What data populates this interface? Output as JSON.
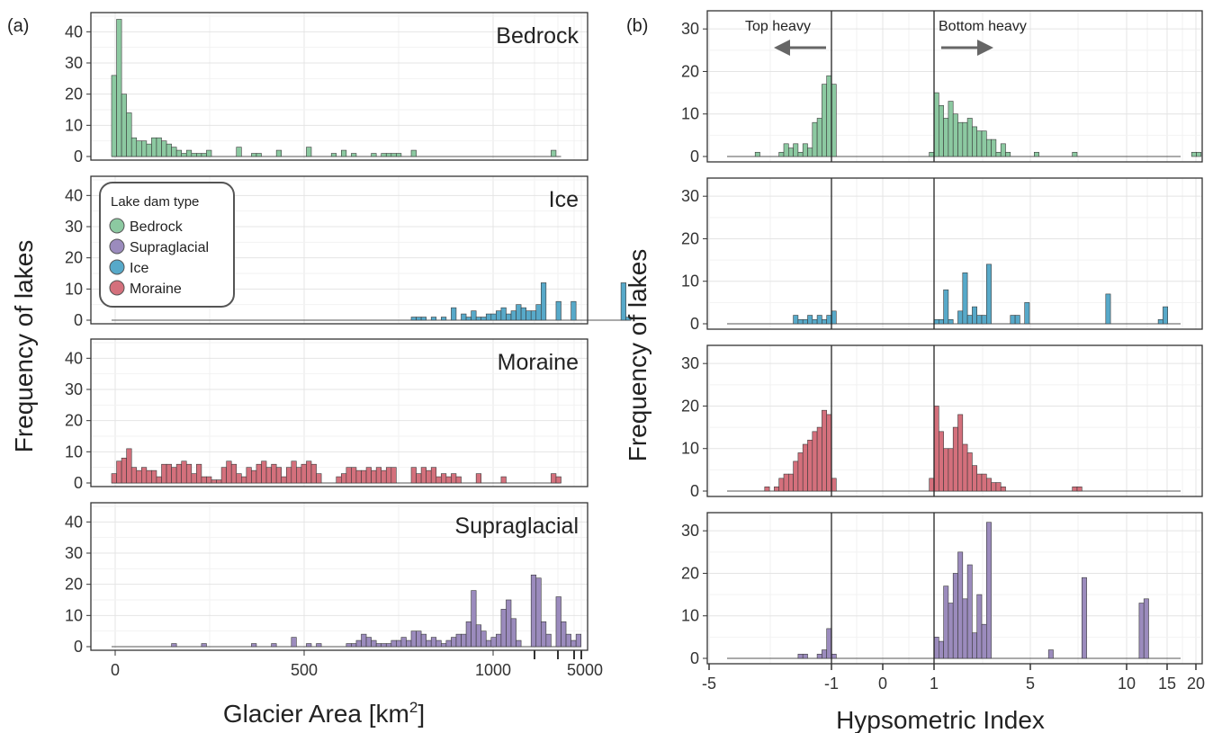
{
  "figure": {
    "panel_a_label": "(a)",
    "panel_b_label": "(b)",
    "left_xlabel_main": "Glacier Area [km",
    "left_xlabel_sup": "2",
    "left_xlabel_end": "]",
    "left_ylabel": "Frequency of lakes",
    "right_xlabel": "Hypsometric Index",
    "right_ylabel": "Frequency of lakes",
    "annotation_top_heavy": "Top heavy",
    "annotation_bottom_heavy": "Bottom heavy"
  },
  "legend": {
    "title": "Lake dam type",
    "items": [
      {
        "label": "Bedrock",
        "color": "#8cc9a1"
      },
      {
        "label": "Supraglacial",
        "color": "#9b8bbd"
      },
      {
        "label": "Ice",
        "color": "#57a9c9"
      },
      {
        "label": "Moraine",
        "color": "#d4707c"
      }
    ]
  },
  "chart_data": [
    {
      "type": "bar",
      "panel": "a",
      "xlabel": "Glacier Area [km2]",
      "ylabel": "Frequency of lakes",
      "ylim": [
        0,
        45
      ],
      "x_ticks": [
        "0",
        "500",
        "1000",
        "5000"
      ],
      "y_ticks": [
        "0",
        "10",
        "20",
        "30",
        "40"
      ],
      "x_scale": "linear 0–1000, compressed above 1000",
      "grid": true,
      "legend_position": "inside Ice panel, top-left",
      "facets": [
        {
          "name": "Bedrock",
          "color": "#8cc9a1",
          "values": [
            26,
            44,
            20,
            14,
            6,
            5,
            5,
            4,
            6,
            6,
            5,
            4,
            3,
            2,
            1,
            2,
            1,
            1,
            1,
            2,
            0,
            0,
            0,
            0,
            0,
            3,
            0,
            0,
            1,
            1,
            0,
            0,
            0,
            2,
            0,
            0,
            0,
            0,
            0,
            3,
            0,
            0,
            0,
            0,
            1,
            0,
            2,
            0,
            1,
            0,
            0,
            0,
            1,
            0,
            1,
            1,
            1,
            1,
            0,
            0,
            2,
            0,
            0,
            0,
            0,
            0,
            0,
            0,
            0,
            0,
            0,
            0,
            0,
            0,
            0,
            0,
            0,
            0,
            0,
            0,
            0,
            0,
            0,
            0,
            0,
            0,
            0,
            0,
            2,
            0
          ]
        },
        {
          "name": "Ice",
          "color": "#57a9c9",
          "values": [
            0,
            0,
            0,
            0,
            0,
            0,
            0,
            0,
            0,
            0,
            0,
            0,
            0,
            0,
            0,
            0,
            0,
            0,
            0,
            0,
            0,
            0,
            0,
            0,
            0,
            0,
            0,
            0,
            0,
            0,
            0,
            0,
            0,
            0,
            0,
            0,
            0,
            0,
            0,
            0,
            0,
            0,
            0,
            0,
            0,
            0,
            0,
            0,
            0,
            0,
            0,
            0,
            0,
            0,
            0,
            0,
            0,
            0,
            0,
            0,
            1,
            1,
            1,
            0,
            1,
            0,
            1,
            0,
            4,
            0,
            2,
            1,
            3,
            1,
            1,
            2,
            2,
            3,
            4,
            2,
            3,
            5,
            4,
            3,
            3,
            5,
            12,
            0,
            0,
            6,
            0,
            0,
            6,
            0,
            0,
            0,
            0,
            0,
            0,
            0,
            0,
            0,
            12,
            1
          ]
        },
        {
          "name": "Moraine",
          "color": "#d4707c",
          "values": [
            3,
            7,
            8,
            11,
            5,
            4,
            5,
            4,
            4,
            2,
            6,
            6,
            5,
            6,
            7,
            6,
            3,
            6,
            2,
            2,
            1,
            1,
            5,
            7,
            6,
            3,
            2,
            5,
            4,
            6,
            7,
            5,
            6,
            5,
            2,
            5,
            7,
            5,
            6,
            7,
            6,
            3,
            0,
            0,
            0,
            2,
            3,
            5,
            5,
            4,
            4,
            5,
            4,
            5,
            4,
            5,
            5,
            0,
            0,
            0,
            5,
            3,
            5,
            4,
            5,
            2,
            3,
            2,
            3,
            2,
            0,
            0,
            0,
            3,
            0,
            0,
            0,
            0,
            2,
            0,
            0,
            0,
            0,
            0,
            0,
            0,
            0,
            0,
            3,
            2
          ]
        },
        {
          "name": "Supraglacial",
          "color": "#9b8bbd",
          "values": [
            0,
            0,
            0,
            0,
            0,
            0,
            0,
            0,
            0,
            0,
            0,
            0,
            1,
            0,
            0,
            0,
            0,
            0,
            1,
            0,
            0,
            0,
            0,
            0,
            0,
            0,
            0,
            0,
            1,
            0,
            0,
            0,
            1,
            0,
            0,
            0,
            3,
            0,
            0,
            1,
            0,
            1,
            0,
            0,
            0,
            0,
            0,
            1,
            1,
            2,
            4,
            3,
            2,
            1,
            1,
            1,
            2,
            2,
            3,
            2,
            5,
            5,
            4,
            2,
            3,
            2,
            1,
            2,
            3,
            4,
            4,
            8,
            18,
            7,
            5,
            2,
            3,
            4,
            12,
            15,
            9,
            2,
            0,
            0,
            23,
            22,
            8,
            4,
            0,
            16,
            8,
            4,
            2,
            4
          ]
        }
      ]
    },
    {
      "type": "bar",
      "panel": "b",
      "xlabel": "Hypsometric Index",
      "ylabel": "Frequency of lakes",
      "ylim": [
        0,
        33
      ],
      "x_ticks": [
        "-5",
        "-1",
        "0",
        "1",
        "5",
        "10",
        "15",
        "20"
      ],
      "y_ticks": [
        "0",
        "10",
        "20",
        "30"
      ],
      "x_scale": "piecewise: -5 to -1, -1 to 1, 1 to 5, 5 to 20",
      "grid": true,
      "vertical_reference_lines_at": [
        -1,
        1
      ],
      "facets": [
        {
          "name": "Bedrock",
          "color": "#8cc9a1",
          "neg_values": [
            1,
            0,
            0,
            0,
            0,
            1,
            3,
            2,
            3,
            1,
            3,
            2,
            8,
            9,
            17,
            19,
            17
          ],
          "pos_values": [
            1,
            15,
            12,
            9,
            13,
            10,
            8,
            8,
            9,
            7,
            6,
            6,
            4,
            4,
            1,
            3,
            1,
            0,
            0,
            0,
            0,
            0,
            1,
            0,
            0,
            0,
            0,
            0,
            0,
            0,
            1,
            0,
            0,
            0,
            0,
            0,
            0,
            0,
            0,
            0,
            0,
            0,
            0,
            0,
            0,
            0,
            0,
            0,
            0,
            0,
            0,
            0,
            0,
            0,
            0,
            1,
            1,
            0,
            0,
            0,
            0,
            0,
            0,
            0,
            0,
            0,
            0,
            0,
            0,
            0,
            0,
            0,
            0,
            0,
            0
          ]
        },
        {
          "name": "Ice",
          "color": "#57a9c9",
          "neg_values": [
            0,
            0,
            0,
            0,
            0,
            0,
            2,
            1,
            1,
            2,
            1,
            2,
            1,
            2,
            3
          ],
          "pos_values": [
            0,
            1,
            1,
            8,
            1,
            0,
            3,
            12,
            2,
            4,
            2,
            2,
            14,
            0,
            0,
            0,
            0,
            2,
            2,
            0,
            5,
            0,
            0,
            0,
            0,
            0,
            0,
            0,
            0,
            0,
            0,
            0,
            0,
            0,
            0,
            0,
            0,
            7,
            0,
            0,
            0,
            0,
            0,
            0,
            0,
            0,
            0,
            0,
            1,
            4,
            0,
            0,
            0,
            0,
            0,
            0,
            0,
            0,
            0,
            0,
            0,
            0,
            0,
            0,
            0,
            0,
            0,
            0,
            0,
            0,
            0,
            0
          ]
        },
        {
          "name": "Moraine",
          "color": "#d4707c",
          "neg_values": [
            1,
            0,
            1,
            3,
            4,
            4,
            7,
            9,
            11,
            12,
            14,
            15,
            19,
            18,
            3
          ],
          "pos_values": [
            3,
            20,
            14,
            10,
            10,
            15,
            18,
            11,
            9,
            6,
            4,
            4,
            3,
            2,
            2,
            1,
            0,
            0,
            0,
            0,
            0,
            0,
            0,
            0,
            0,
            0,
            0,
            0,
            0,
            0,
            1,
            1,
            0,
            0,
            0,
            0,
            0,
            0,
            0,
            0,
            0,
            0,
            0,
            0,
            0,
            0,
            0,
            0,
            0,
            0,
            0
          ]
        },
        {
          "name": "Supraglacial",
          "color": "#9b8bbd",
          "neg_values": [
            0,
            0,
            0,
            0,
            0,
            0,
            1,
            1,
            0,
            0,
            1,
            2,
            7,
            1
          ],
          "pos_values": [
            0,
            5,
            4,
            17,
            13,
            20,
            25,
            14,
            22,
            6,
            15,
            8,
            32,
            0,
            0,
            0,
            0,
            0,
            0,
            0,
            0,
            0,
            0,
            0,
            0,
            2,
            0,
            0,
            0,
            0,
            0,
            0,
            19,
            0,
            0,
            0,
            0,
            0,
            0,
            0,
            0,
            0,
            0,
            0,
            13,
            14,
            0,
            0,
            0,
            0,
            0,
            0,
            0,
            0,
            0,
            0,
            0,
            0,
            0,
            0,
            0,
            0,
            0,
            0,
            0,
            0,
            0,
            0,
            0,
            0,
            0,
            0,
            0,
            0,
            0,
            0,
            0,
            0,
            0,
            0,
            0,
            0,
            0,
            0,
            0,
            0,
            0,
            0,
            0,
            0,
            1
          ]
        }
      ]
    }
  ]
}
